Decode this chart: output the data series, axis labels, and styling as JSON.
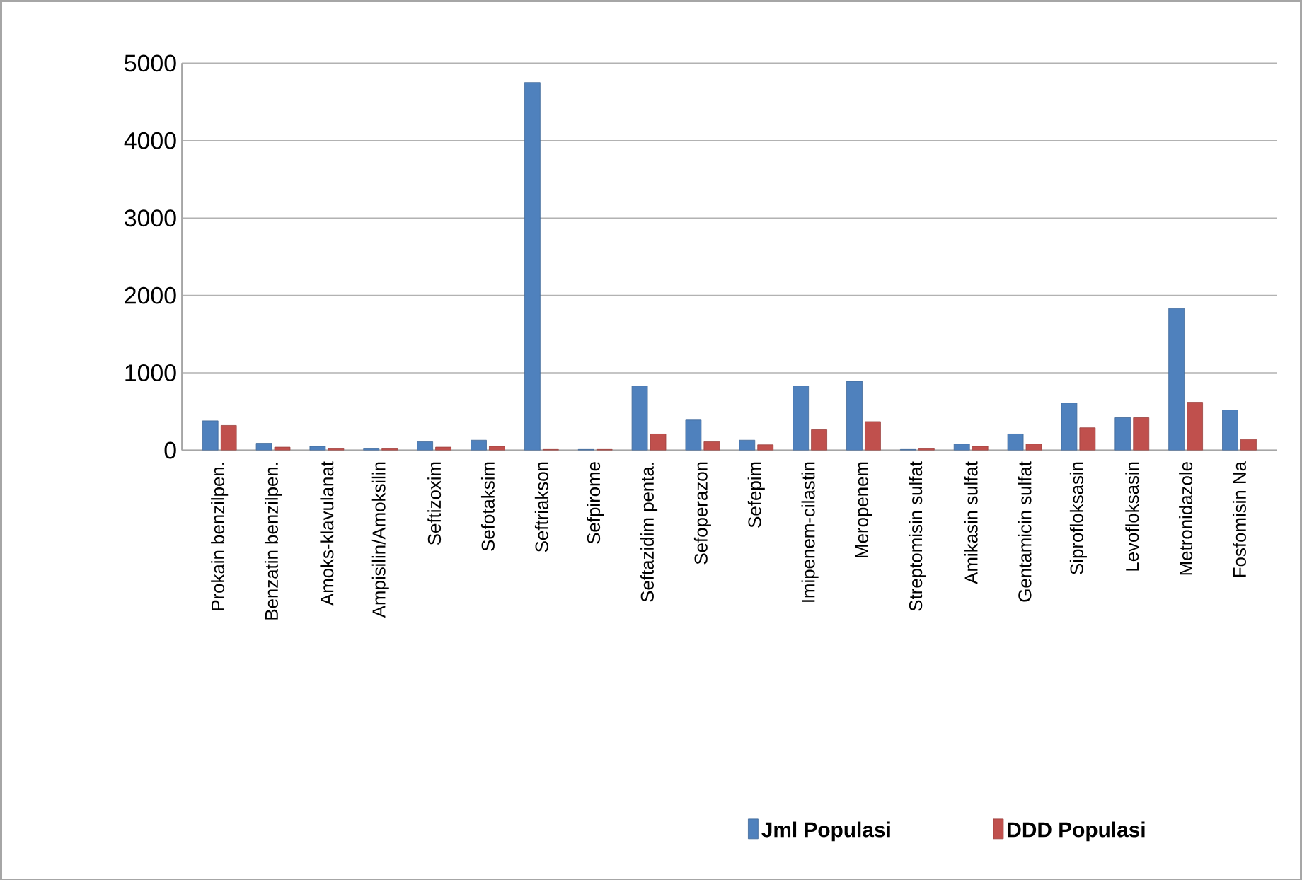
{
  "chart_data": {
    "type": "bar",
    "categories": [
      "Prokain benzilpen.",
      "Benzatin benzilpen.",
      "Amoks-klavulanat",
      "Ampisilin/Amoksilin",
      "Seftizoxim",
      "Sefotaksim",
      "Seftriakson",
      "Sefpirome",
      "Seftazidim penta.",
      "Sefoperazon",
      "Sefepim",
      "Imipenem-cilastin",
      "Meropenem",
      "Streptomisin sulfat",
      "Amikasin sulfat",
      "Gentamicin sulfat",
      "Siprofloksasin",
      "Levofloksasin",
      "Metronidazole",
      "Fosfomisin Na"
    ],
    "series": [
      {
        "name": "Jml Populasi",
        "color": "#4f81bd",
        "values": [
          380,
          90,
          50,
          20,
          110,
          130,
          4750,
          10,
          830,
          390,
          130,
          830,
          890,
          10,
          80,
          210,
          610,
          420,
          1830,
          520
        ]
      },
      {
        "name": "DDD Populasi",
        "color": "#c0504d",
        "values": [
          320,
          40,
          20,
          20,
          40,
          50,
          10,
          10,
          210,
          110,
          70,
          265,
          370,
          20,
          50,
          80,
          290,
          420,
          620,
          140
        ]
      }
    ],
    "ylim": [
      0,
      5000
    ],
    "yticks": [
      0,
      1000,
      2000,
      3000,
      4000,
      5000
    ],
    "grid": "y",
    "legend": "bottom"
  }
}
